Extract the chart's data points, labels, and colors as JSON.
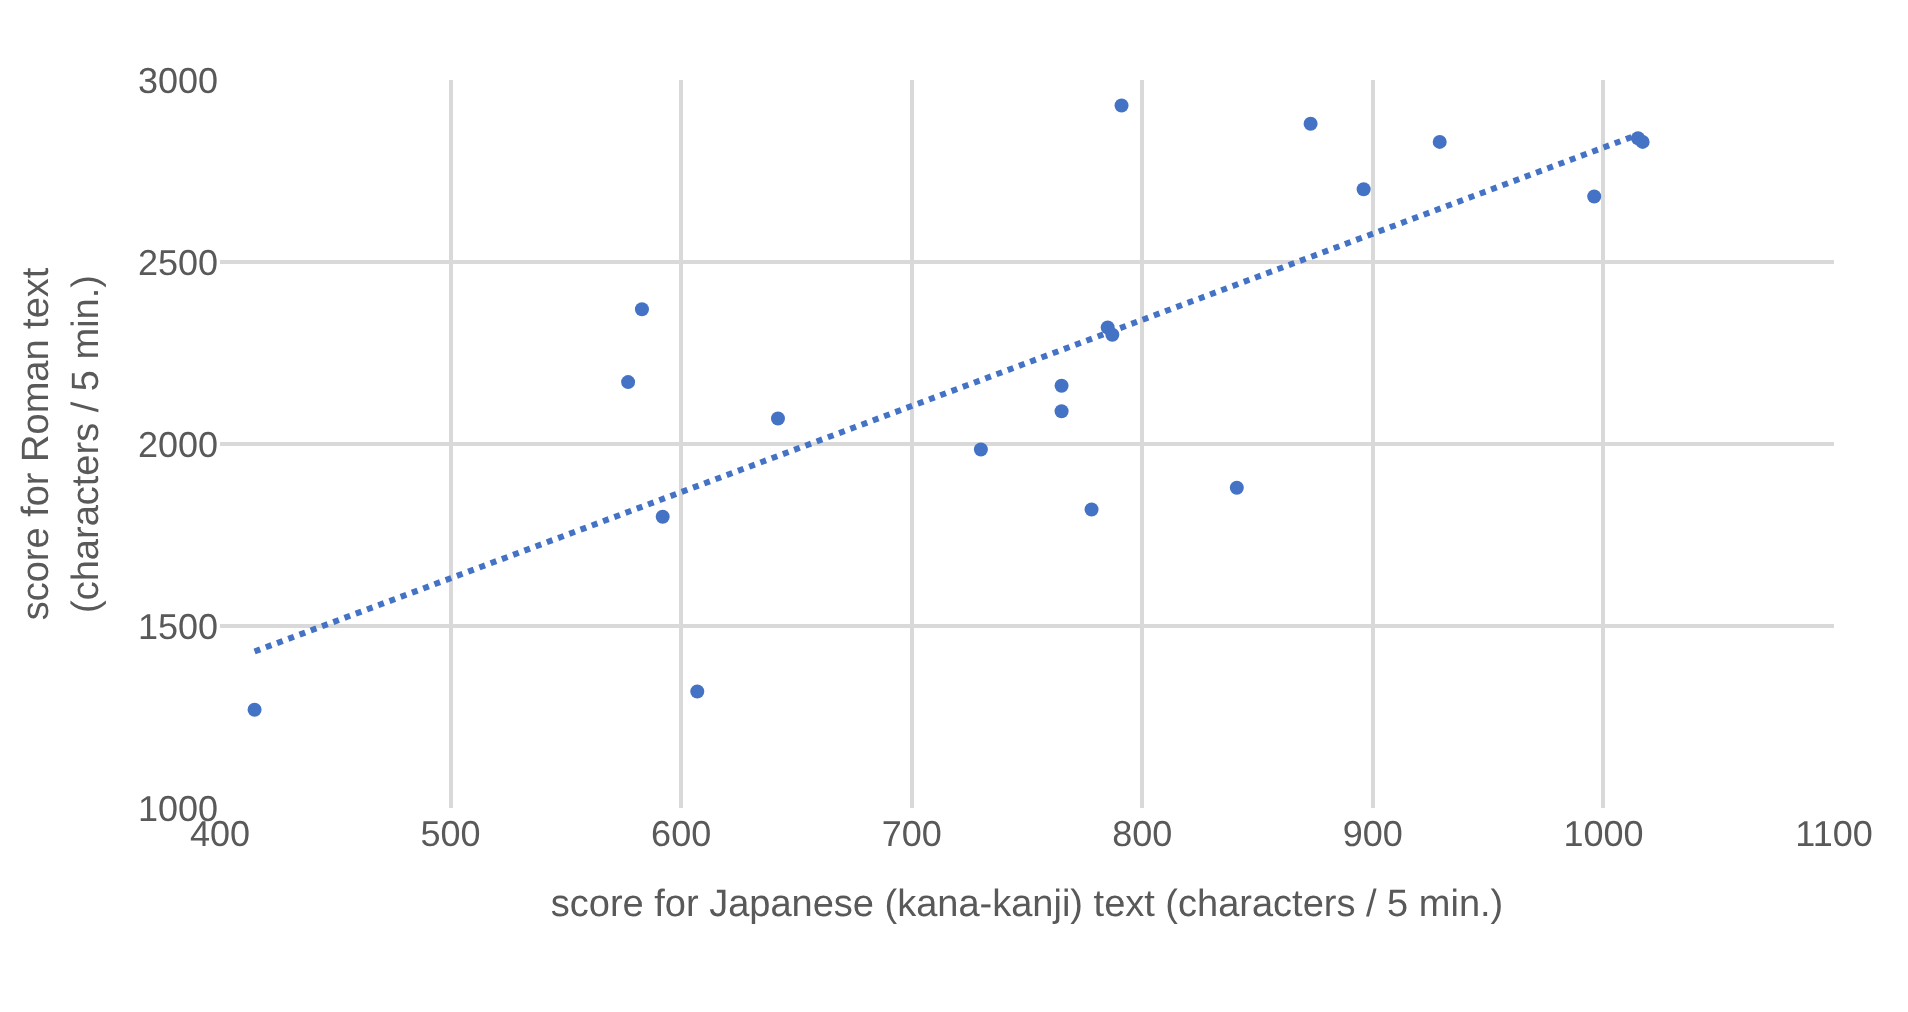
{
  "chart_data": {
    "type": "scatter",
    "xlabel": "score for Japanese (kana-kanji) text (characters / 5 min.)",
    "ylabel": "score for Roman text\n(characters / 5 min.)",
    "xlim": [
      400,
      1100
    ],
    "xticks": [
      400,
      500,
      600,
      700,
      800,
      900,
      1000,
      1100
    ],
    "ylim": [
      1000,
      3000
    ],
    "yticks": [
      1000,
      1500,
      2000,
      2500,
      3000
    ],
    "grid": true,
    "marker": "circle",
    "series": [
      {
        "color": "#4472c4",
        "x": [
          415,
          577,
          583,
          592,
          607,
          642,
          730,
          765,
          765,
          778,
          785,
          787,
          791,
          841,
          873,
          896,
          929,
          996,
          1015,
          1017
        ],
        "values": [
          1270,
          2170,
          2370,
          1800,
          1320,
          2070,
          1985,
          2160,
          2090,
          1820,
          2320,
          2300,
          2930,
          1880,
          2880,
          2700,
          2830,
          2680,
          2840,
          2830
        ]
      },
      {
        "type": "line",
        "color": "#4472c4",
        "line_style": "dotted",
        "marker": "none",
        "x": [
          415,
          1015
        ],
        "values": [
          1430,
          2850
        ]
      }
    ]
  }
}
